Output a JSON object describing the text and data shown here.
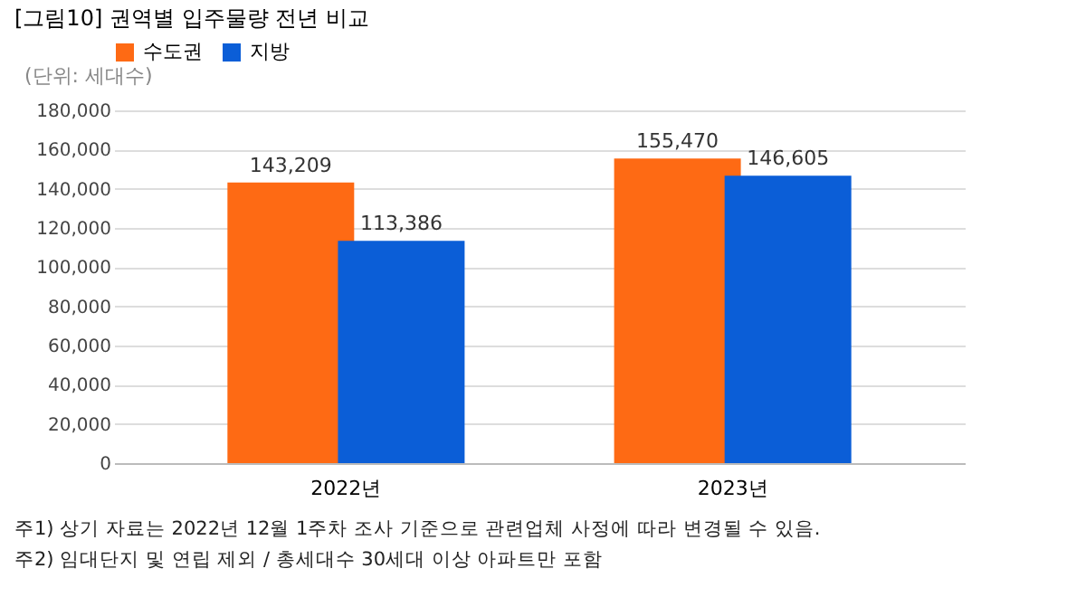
{
  "chart_data": {
    "type": "bar",
    "title": "[그림10] 권역별 입주물량 전년 비교",
    "ylabel": "(단위: 세대수)",
    "categories": [
      "2022년",
      "2023년"
    ],
    "series": [
      {
        "name": "수도권",
        "color": "#fe6a14",
        "values": [
          143209,
          155470
        ],
        "value_labels": [
          "143,209",
          "155,470"
        ]
      },
      {
        "name": "지방",
        "color": "#0b5ed7",
        "values": [
          113386,
          146605
        ],
        "value_labels": [
          "113,386",
          "146,605"
        ]
      }
    ],
    "ylim": [
      0,
      180000
    ],
    "yticks": [
      {
        "value": 0,
        "label": "0"
      },
      {
        "value": 20000,
        "label": "20,000"
      },
      {
        "value": 40000,
        "label": "40,000"
      },
      {
        "value": 60000,
        "label": "60,000"
      },
      {
        "value": 80000,
        "label": "80,000"
      },
      {
        "value": 100000,
        "label": "100,000"
      },
      {
        "value": 120000,
        "label": "120,000"
      },
      {
        "value": 140000,
        "label": "140,000"
      },
      {
        "value": 160000,
        "label": "160,000"
      },
      {
        "value": 180000,
        "label": "180,000"
      }
    ],
    "grid": "y",
    "legend": "top",
    "annotations": [
      "주1) 상기 자료는 2022년 12월 1주차 조사 기준으로 관련업체 사정에 따라 변경될 수 있음.",
      "주2) 임대단지 및 연립 제외 / 총세대수 30세대 이상 아파트만 포함"
    ]
  }
}
